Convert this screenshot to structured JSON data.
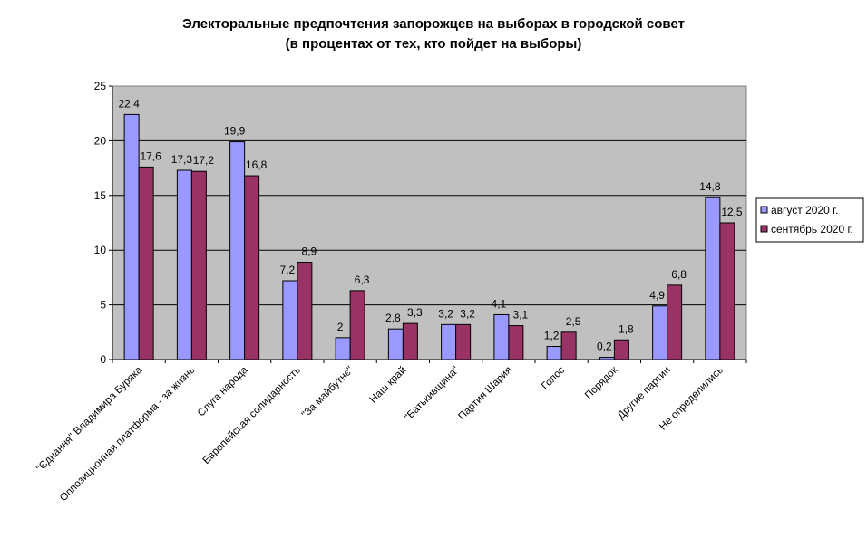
{
  "chart_data": {
    "type": "bar",
    "title_lines": [
      "Электоральные предпочтения запорожцев на выборах в городской совет",
      "(в процентах от тех, кто пойдет на выборы)"
    ],
    "categories": [
      "\"Єднання\" Владимира Буряка",
      "Оппозиционная платформа - за жизнь",
      "Слуга народа",
      "Европейская солидарность",
      "\"За майбутнє\"",
      "Наш край",
      "\"Батькивщина\"",
      "Партия Шария",
      "Голос",
      "Порядок",
      "Другие партии",
      "Не определились"
    ],
    "series": [
      {
        "name": "август 2020 г.",
        "color": "#9999ff",
        "values": [
          22.4,
          17.3,
          19.9,
          7.2,
          2,
          2.8,
          3.2,
          4.1,
          1.2,
          0.2,
          4.9,
          14.8
        ],
        "labels": [
          "22,4",
          "17,3",
          "19,9",
          "7,2",
          "2",
          "2,8",
          "3,2",
          "4,1",
          "1,2",
          "0,2",
          "4,9",
          "14,8"
        ]
      },
      {
        "name": "сентябрь 2020 г.",
        "color": "#993366",
        "values": [
          17.6,
          17.2,
          16.8,
          8.9,
          6.3,
          3.3,
          3.2,
          3.1,
          2.5,
          1.8,
          6.8,
          12.5
        ],
        "labels": [
          "17,6",
          "17,2",
          "16,8",
          "8,9",
          "6,3",
          "3,3",
          "3,2",
          "3,1",
          "2,5",
          "1,8",
          "6,8",
          "12,5"
        ]
      }
    ],
    "y_ticks": [
      "0",
      "5",
      "10",
      "15",
      "20",
      "25"
    ],
    "ylim": [
      0,
      25
    ],
    "grid": true,
    "legend_position": "right",
    "plot_background": "#c0c0c0"
  }
}
